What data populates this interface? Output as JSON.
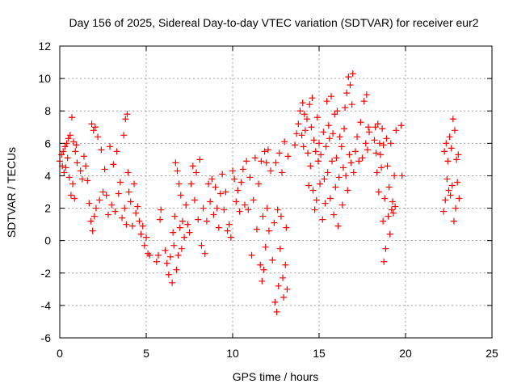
{
  "chart_data": {
    "type": "scatter",
    "title": "Day 156 of 2025, Sidereal Day-to-day VTEC variation (SDTVAR) for receiver eur2",
    "xlabel": "GPS time / hours",
    "ylabel": "SDTVAR / TECUs",
    "xlim": [
      0,
      25
    ],
    "ylim": [
      -6,
      12
    ],
    "xticks": [
      "0",
      "5",
      "10",
      "15",
      "20",
      "25"
    ],
    "yticks": [
      "-6",
      "-4",
      "-2",
      "0",
      "2",
      "4",
      "6",
      "8",
      "10",
      "12"
    ],
    "grid": true,
    "marker": "plus",
    "series": [
      {
        "name": "SDTVAR",
        "color": "#ff0000",
        "points": [
          [
            0.0,
            4.9
          ],
          [
            0.1,
            5.3
          ],
          [
            0.15,
            4.6
          ],
          [
            0.2,
            5.5
          ],
          [
            0.25,
            4.2
          ],
          [
            0.3,
            5.8
          ],
          [
            0.35,
            4.5
          ],
          [
            0.4,
            6.0
          ],
          [
            0.45,
            5.1
          ],
          [
            0.5,
            6.3
          ],
          [
            0.55,
            3.9
          ],
          [
            0.6,
            6.5
          ],
          [
            0.65,
            2.8
          ],
          [
            0.7,
            7.6
          ],
          [
            0.75,
            3.5
          ],
          [
            0.8,
            6.1
          ],
          [
            0.85,
            2.6
          ],
          [
            0.9,
            5.5
          ],
          [
            0.95,
            5.9
          ],
          [
            1.0,
            4.8
          ],
          [
            1.2,
            4.3
          ],
          [
            1.3,
            3.8
          ],
          [
            1.4,
            5.2
          ],
          [
            1.5,
            4.6
          ],
          [
            1.6,
            3.7
          ],
          [
            1.7,
            2.3
          ],
          [
            1.8,
            1.2
          ],
          [
            1.85,
            7.2
          ],
          [
            1.9,
            0.6
          ],
          [
            1.95,
            6.8
          ],
          [
            2.0,
            1.5
          ],
          [
            2.05,
            7.0
          ],
          [
            2.1,
            2.0
          ],
          [
            2.2,
            6.4
          ],
          [
            2.3,
            2.5
          ],
          [
            2.4,
            5.6
          ],
          [
            2.5,
            3.0
          ],
          [
            2.6,
            4.4
          ],
          [
            2.7,
            2.8
          ],
          [
            2.8,
            1.6
          ],
          [
            2.9,
            5.8
          ],
          [
            3.0,
            2.2
          ],
          [
            3.1,
            4.7
          ],
          [
            3.2,
            1.8
          ],
          [
            3.3,
            5.5
          ],
          [
            3.4,
            2.9
          ],
          [
            3.5,
            3.6
          ],
          [
            3.6,
            1.4
          ],
          [
            3.7,
            6.5
          ],
          [
            3.75,
            2.0
          ],
          [
            3.8,
            7.5
          ],
          [
            3.85,
            1.0
          ],
          [
            3.9,
            7.8
          ],
          [
            3.95,
            4.2
          ],
          [
            4.0,
            3.0
          ],
          [
            4.1,
            2.4
          ],
          [
            4.2,
            0.9
          ],
          [
            4.3,
            3.5
          ],
          [
            4.4,
            1.7
          ],
          [
            4.5,
            2.1
          ],
          [
            4.6,
            1.2
          ],
          [
            4.7,
            0.4
          ],
          [
            4.8,
            0.9
          ],
          [
            4.9,
            -0.3
          ],
          [
            5.0,
            0.2
          ],
          [
            5.1,
            -0.8
          ],
          [
            5.2,
            -0.9
          ],
          [
            5.6,
            -1.3
          ],
          [
            5.7,
            -0.9
          ],
          [
            5.8,
            1.3
          ],
          [
            5.85,
            1.9
          ],
          [
            6.1,
            -0.6
          ],
          [
            6.2,
            -1.4
          ],
          [
            6.3,
            -2.1
          ],
          [
            6.4,
            -1.0
          ],
          [
            6.5,
            -2.6
          ],
          [
            6.55,
            0.5
          ],
          [
            6.6,
            -0.3
          ],
          [
            6.65,
            1.5
          ],
          [
            6.7,
            4.8
          ],
          [
            6.75,
            -1.8
          ],
          [
            6.8,
            4.3
          ],
          [
            6.85,
            -0.9
          ],
          [
            6.9,
            3.5
          ],
          [
            6.95,
            0.8
          ],
          [
            7.0,
            2.8
          ],
          [
            7.05,
            -0.5
          ],
          [
            7.1,
            1.2
          ],
          [
            7.2,
            0.2
          ],
          [
            7.3,
            2.2
          ],
          [
            7.4,
            1.0
          ],
          [
            7.5,
            0.5
          ],
          [
            7.6,
            3.5
          ],
          [
            7.7,
            4.6
          ],
          [
            7.8,
            2.5
          ],
          [
            7.9,
            4.2
          ],
          [
            8.0,
            1.3
          ],
          [
            8.1,
            5.0
          ],
          [
            8.2,
            -0.3
          ],
          [
            8.3,
            2.0
          ],
          [
            8.4,
            -0.8
          ],
          [
            8.5,
            1.2
          ],
          [
            8.6,
            3.5
          ],
          [
            8.7,
            2.4
          ],
          [
            8.8,
            3.8
          ],
          [
            8.9,
            1.6
          ],
          [
            9.0,
            3.3
          ],
          [
            9.1,
            2.0
          ],
          [
            9.2,
            0.8
          ],
          [
            9.3,
            2.9
          ],
          [
            9.4,
            4.1
          ],
          [
            9.5,
            1.9
          ],
          [
            9.6,
            3.0
          ],
          [
            9.7,
            0.6
          ],
          [
            9.8,
            1.0
          ],
          [
            9.9,
            0.2
          ],
          [
            10.0,
            4.3
          ],
          [
            10.1,
            3.8
          ],
          [
            10.2,
            2.4
          ],
          [
            10.3,
            3.1
          ],
          [
            10.4,
            1.8
          ],
          [
            10.5,
            3.6
          ],
          [
            10.6,
            4.4
          ],
          [
            10.7,
            2.2
          ],
          [
            10.8,
            4.9
          ],
          [
            10.9,
            1.9
          ],
          [
            11.0,
            3.9
          ],
          [
            11.1,
            -0.9
          ],
          [
            11.2,
            2.5
          ],
          [
            11.3,
            5.1
          ],
          [
            11.4,
            0.7
          ],
          [
            11.5,
            3.5
          ],
          [
            11.6,
            -1.5
          ],
          [
            11.65,
            4.9
          ],
          [
            11.7,
            -2.5
          ],
          [
            11.75,
            1.5
          ],
          [
            11.8,
            -1.8
          ],
          [
            11.85,
            5.5
          ],
          [
            11.9,
            -0.4
          ],
          [
            11.95,
            4.8
          ],
          [
            12.0,
            2.0
          ],
          [
            12.05,
            5.6
          ],
          [
            12.1,
            0.6
          ],
          [
            12.2,
            4.3
          ],
          [
            12.3,
            -1.2
          ],
          [
            12.4,
            1.1
          ],
          [
            12.45,
            -3.8
          ],
          [
            12.5,
            4.8
          ],
          [
            12.55,
            -4.4
          ],
          [
            12.6,
            1.9
          ],
          [
            12.65,
            -2.8
          ],
          [
            12.7,
            5.4
          ],
          [
            12.75,
            -0.5
          ],
          [
            12.8,
            1.5
          ],
          [
            12.85,
            4.2
          ],
          [
            12.9,
            -2.3
          ],
          [
            12.95,
            -3.5
          ],
          [
            13.0,
            6.1
          ],
          [
            13.05,
            -1.5
          ],
          [
            13.1,
            0.8
          ],
          [
            13.15,
            -3.0
          ],
          [
            13.2,
            5.2
          ],
          [
            13.6,
            5.9
          ],
          [
            13.7,
            6.6
          ],
          [
            13.8,
            7.2
          ],
          [
            13.9,
            8.0
          ],
          [
            14.0,
            6.5
          ],
          [
            14.05,
            8.5
          ],
          [
            14.1,
            5.8
          ],
          [
            14.15,
            7.8
          ],
          [
            14.2,
            6.8
          ],
          [
            14.3,
            7.5
          ],
          [
            14.35,
            5.4
          ],
          [
            14.4,
            3.4
          ],
          [
            14.45,
            8.4
          ],
          [
            14.5,
            4.6
          ],
          [
            14.55,
            7.0
          ],
          [
            14.6,
            8.8
          ],
          [
            14.65,
            3.1
          ],
          [
            14.7,
            6.2
          ],
          [
            14.75,
            1.9
          ],
          [
            14.8,
            5.5
          ],
          [
            14.85,
            2.5
          ],
          [
            14.9,
            7.6
          ],
          [
            14.95,
            4.9
          ],
          [
            15.0,
            6.0
          ],
          [
            15.05,
            3.5
          ],
          [
            15.1,
            5.3
          ],
          [
            15.2,
            1.3
          ],
          [
            15.25,
            6.7
          ],
          [
            15.3,
            3.8
          ],
          [
            15.35,
            2.3
          ],
          [
            15.4,
            5.8
          ],
          [
            15.45,
            8.6
          ],
          [
            15.5,
            4.2
          ],
          [
            15.55,
            7.1
          ],
          [
            15.6,
            6.3
          ],
          [
            15.65,
            2.6
          ],
          [
            15.7,
            8.9
          ],
          [
            15.75,
            4.9
          ],
          [
            15.8,
            6.6
          ],
          [
            15.85,
            1.6
          ],
          [
            15.9,
            7.8
          ],
          [
            15.95,
            3.3
          ],
          [
            16.0,
            5.1
          ],
          [
            16.05,
            8.0
          ],
          [
            16.1,
            0.9
          ],
          [
            16.15,
            3.9
          ],
          [
            16.2,
            6.4
          ],
          [
            16.3,
            5.8
          ],
          [
            16.35,
            2.2
          ],
          [
            16.4,
            4.5
          ],
          [
            16.45,
            6.9
          ],
          [
            16.5,
            8.2
          ],
          [
            16.55,
            4.0
          ],
          [
            16.6,
            9.1
          ],
          [
            16.65,
            3.1
          ],
          [
            16.7,
            10.1
          ],
          [
            16.75,
            5.3
          ],
          [
            16.8,
            9.6
          ],
          [
            16.85,
            4.8
          ],
          [
            16.9,
            8.4
          ],
          [
            16.95,
            10.3
          ],
          [
            17.0,
            4.2
          ],
          [
            17.1,
            5.5
          ],
          [
            17.2,
            6.4
          ],
          [
            17.3,
            4.9
          ],
          [
            17.4,
            7.3
          ],
          [
            17.5,
            5.1
          ],
          [
            17.6,
            8.6
          ],
          [
            17.7,
            6.0
          ],
          [
            17.75,
            9.0
          ],
          [
            17.8,
            5.6
          ],
          [
            17.85,
            7.0
          ],
          [
            17.9,
            6.7
          ],
          [
            18.2,
            6.2
          ],
          [
            18.25,
            7.0
          ],
          [
            18.3,
            5.4
          ],
          [
            18.35,
            4.2
          ],
          [
            18.4,
            7.2
          ],
          [
            18.45,
            3.0
          ],
          [
            18.5,
            6.0
          ],
          [
            18.55,
            5.3
          ],
          [
            18.6,
            4.5
          ],
          [
            18.65,
            6.9
          ],
          [
            18.7,
            1.2
          ],
          [
            18.72,
            5.9
          ],
          [
            18.75,
            -1.3
          ],
          [
            18.8,
            2.6
          ],
          [
            18.85,
            -0.5
          ],
          [
            18.9,
            6.3
          ],
          [
            18.95,
            4.6
          ],
          [
            19.0,
            1.5
          ],
          [
            19.05,
            3.3
          ],
          [
            19.1,
            0.4
          ],
          [
            19.15,
            6.0
          ],
          [
            19.2,
            1.9
          ],
          [
            19.25,
            2.4
          ],
          [
            19.3,
            1.7
          ],
          [
            19.35,
            4.0
          ],
          [
            19.4,
            2.1
          ],
          [
            19.45,
            6.8
          ],
          [
            19.75,
            7.1
          ],
          [
            19.8,
            4.0
          ],
          [
            22.2,
            1.8
          ],
          [
            22.25,
            5.5
          ],
          [
            22.3,
            2.5
          ],
          [
            22.35,
            6.0
          ],
          [
            22.4,
            3.8
          ],
          [
            22.45,
            4.9
          ],
          [
            22.5,
            3.1
          ],
          [
            22.55,
            6.4
          ],
          [
            22.6,
            2.8
          ],
          [
            22.65,
            5.7
          ],
          [
            22.7,
            3.4
          ],
          [
            22.75,
            7.5
          ],
          [
            22.8,
            1.2
          ],
          [
            22.85,
            6.8
          ],
          [
            22.9,
            2.0
          ],
          [
            22.95,
            5.0
          ],
          [
            23.0,
            3.6
          ],
          [
            23.05,
            5.3
          ],
          [
            23.1,
            2.6
          ]
        ]
      }
    ]
  }
}
